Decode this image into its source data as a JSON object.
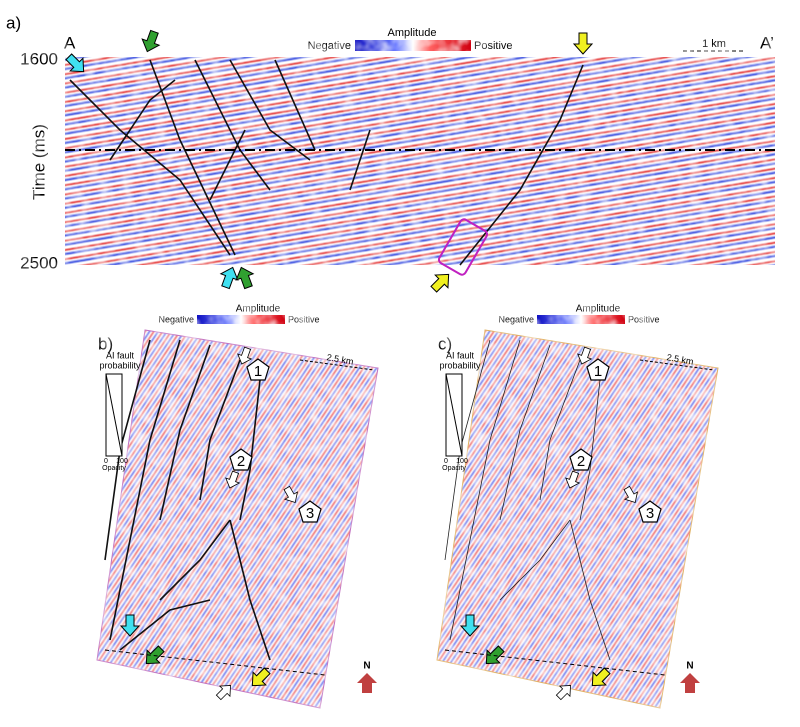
{
  "panel_a": {
    "label": "a)",
    "left_marker": "A",
    "right_marker": "A’",
    "colorbar": {
      "title": "Amplitude",
      "min_label": "Negative",
      "max_label": "Positive"
    },
    "scale": "1 km",
    "y_axis": {
      "title": "Time (ms)",
      "ticks": [
        1600,
        2500
      ]
    }
  },
  "panel_b": {
    "label": "b)",
    "colorbar": {
      "title": "Amplitude",
      "min_label": "Negative",
      "max_label": "Positive"
    },
    "scale": "2.5 km",
    "legend": {
      "title_line1": "AI fault",
      "title_line2": "probability",
      "min": 0,
      "max": 100,
      "axis": "Opacity"
    },
    "markers": [
      "1",
      "2",
      "3"
    ],
    "north": "N"
  },
  "panel_c": {
    "label": "c)",
    "colorbar": {
      "title": "Amplitude",
      "min_label": "Negative",
      "max_label": "Positive"
    },
    "scale": "2.5 km",
    "legend": {
      "title_line1": "AI fault",
      "title_line2": "probability",
      "min": 0,
      "max": 100,
      "axis": "Opacity"
    },
    "markers": [
      "1",
      "2",
      "3"
    ],
    "north": "N"
  }
}
